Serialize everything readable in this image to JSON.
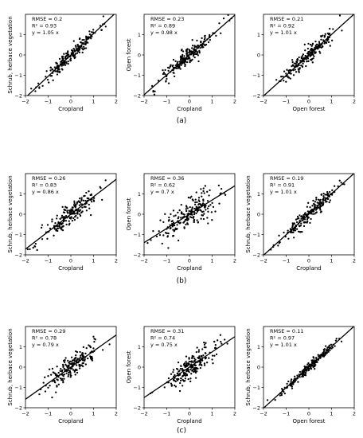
{
  "figure": {
    "panel_labels": [
      "(a)",
      "(b)",
      "(c)"
    ]
  },
  "chart_data": [
    {
      "type": "scatter",
      "row": 0,
      "col": 0,
      "xlabel": "Cropland",
      "ylabel": "Schrub, herbace vegetation",
      "xlim": [
        -2,
        2
      ],
      "ylim": [
        -2,
        2
      ],
      "xticks": [
        -2,
        -1,
        0,
        1,
        2
      ],
      "yticks": [
        -2,
        -1,
        0,
        1
      ],
      "stats": [
        "RMSE = 0.2",
        "R² = 0.93",
        "y = 1.05 x"
      ],
      "fit_slope": 1.05,
      "spread": 0.2,
      "n_points": 200,
      "x_sd": 0.62,
      "seed": 11
    },
    {
      "type": "scatter",
      "row": 0,
      "col": 1,
      "xlabel": "Cropland",
      "ylabel": "Open forest",
      "xlim": [
        -2,
        2
      ],
      "ylim": [
        -2,
        2
      ],
      "xticks": [
        -2,
        -1,
        0,
        1,
        2
      ],
      "yticks": [
        -2,
        -1,
        0,
        1
      ],
      "stats": [
        "RMSE = 0.23",
        "R² = 0.89",
        "y = 0.98 x"
      ],
      "fit_slope": 0.98,
      "spread": 0.23,
      "n_points": 200,
      "x_sd": 0.62,
      "seed": 12
    },
    {
      "type": "scatter",
      "row": 0,
      "col": 2,
      "xlabel": "Open forest",
      "ylabel": "",
      "xlim": [
        -2,
        2
      ],
      "ylim": [
        -2,
        2
      ],
      "xticks": [
        -2,
        -1,
        0,
        1,
        2
      ],
      "yticks": [
        -2,
        -1,
        0,
        1
      ],
      "stats": [
        "RMSE = 0.21",
        "R² = 0.92",
        "y = 1.01 x"
      ],
      "fit_slope": 1.01,
      "spread": 0.21,
      "n_points": 200,
      "x_sd": 0.62,
      "seed": 13
    },
    {
      "type": "scatter",
      "row": 1,
      "col": 0,
      "xlabel": "Cropland",
      "ylabel": "Schrub, herbace vegetation",
      "xlim": [
        -2,
        2
      ],
      "ylim": [
        -2,
        2
      ],
      "xticks": [
        -2,
        -1,
        0,
        1,
        2
      ],
      "yticks": [
        -2,
        -1,
        0,
        1
      ],
      "stats": [
        "RMSE = 0.26",
        "R² = 0.83",
        "y = 0.86 x"
      ],
      "fit_slope": 0.86,
      "spread": 0.26,
      "n_points": 200,
      "x_sd": 0.62,
      "seed": 21
    },
    {
      "type": "scatter",
      "row": 1,
      "col": 1,
      "xlabel": "Cropland",
      "ylabel": "Open forest",
      "xlim": [
        -2,
        2
      ],
      "ylim": [
        -2,
        2
      ],
      "xticks": [
        -2,
        -1,
        0,
        1,
        2
      ],
      "yticks": [
        -2,
        -1,
        0,
        1
      ],
      "stats": [
        "RMSE = 0.36",
        "R² = 0.62",
        "y = 0.7 x"
      ],
      "fit_slope": 0.7,
      "spread": 0.36,
      "n_points": 200,
      "x_sd": 0.62,
      "seed": 22
    },
    {
      "type": "scatter",
      "row": 1,
      "col": 2,
      "xlabel": "Cropland",
      "ylabel": "Schrub, herbace vegetation",
      "xlim": [
        -2,
        2
      ],
      "ylim": [
        -2,
        2
      ],
      "xticks": [
        -2,
        -1,
        0,
        1,
        2
      ],
      "yticks": [
        -2,
        -1,
        0,
        1
      ],
      "stats": [
        "RMSE = 0.19",
        "R² = 0.91",
        "y = 1.01 x"
      ],
      "fit_slope": 1.01,
      "spread": 0.19,
      "n_points": 200,
      "x_sd": 0.62,
      "seed": 23
    },
    {
      "type": "scatter",
      "row": 2,
      "col": 0,
      "xlabel": "Cropland",
      "ylabel": "Schrub, herbace vegetation",
      "xlim": [
        -2,
        2
      ],
      "ylim": [
        -2,
        2
      ],
      "xticks": [
        -2,
        -1,
        0,
        1,
        2
      ],
      "yticks": [
        -2,
        -1,
        0,
        1
      ],
      "stats": [
        "RMSE = 0.29",
        "R² = 0.78",
        "y = 0.79 x"
      ],
      "fit_slope": 0.79,
      "spread": 0.29,
      "n_points": 200,
      "x_sd": 0.62,
      "seed": 31
    },
    {
      "type": "scatter",
      "row": 2,
      "col": 1,
      "xlabel": "Cropland",
      "ylabel": "Open forest",
      "xlim": [
        -2,
        2
      ],
      "ylim": [
        -2,
        2
      ],
      "xticks": [
        -2,
        -1,
        0,
        1,
        2
      ],
      "yticks": [
        -2,
        -1,
        0,
        1
      ],
      "stats": [
        "RMSE = 0.31",
        "R² = 0.74",
        "y = 0.75 x"
      ],
      "fit_slope": 0.75,
      "spread": 0.31,
      "n_points": 200,
      "x_sd": 0.62,
      "seed": 32
    },
    {
      "type": "scatter",
      "row": 2,
      "col": 2,
      "xlabel": "Open forest",
      "ylabel": "Schrub, herbace vegetation",
      "xlim": [
        -2,
        2
      ],
      "ylim": [
        -2,
        2
      ],
      "xticks": [
        -2,
        -1,
        0,
        1,
        2
      ],
      "yticks": [
        -2,
        -1,
        0,
        1
      ],
      "stats": [
        "RMSE = 0.11",
        "R² = 0.97",
        "y = 1.01 x"
      ],
      "fit_slope": 1.01,
      "spread": 0.11,
      "n_points": 200,
      "x_sd": 0.62,
      "seed": 33
    }
  ]
}
